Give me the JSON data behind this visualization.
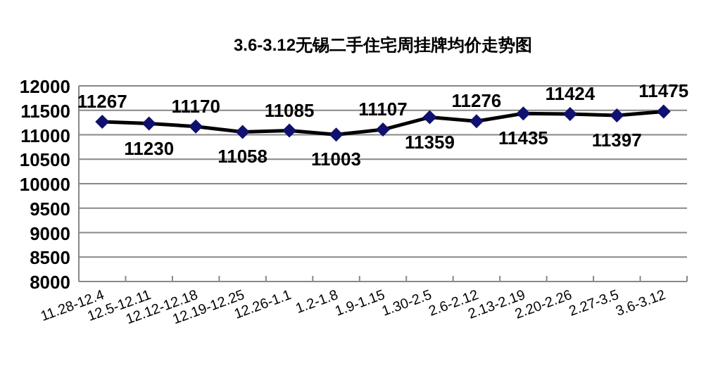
{
  "chart_data": {
    "type": "line",
    "title": "3.6-3.12无锡二手住宅周挂牌均价走势图",
    "categories": [
      "11.28-12.4",
      "12.5-12.11",
      "12.12-12.18",
      "12.19-12.25",
      "12.26-1.1",
      "1.2-1.8",
      "1.9-1.15",
      "1.30-2.5",
      "2.6-2.12",
      "2.13-2.19",
      "2.20-2.26",
      "2.27-3.5",
      "3.6-3.12"
    ],
    "series": [
      {
        "color": "#10106e",
        "values": [
          11267,
          11230,
          11170,
          11058,
          11085,
          11003,
          11107,
          11359,
          11276,
          11435,
          11424,
          11397,
          11475
        ]
      }
    ],
    "ylim": [
      8000,
      12000
    ],
    "yticks": [
      8000,
      8500,
      9000,
      9500,
      10000,
      10500,
      11000,
      11500,
      12000
    ],
    "grid": "y",
    "marker": "diamond",
    "data_labels": true
  }
}
